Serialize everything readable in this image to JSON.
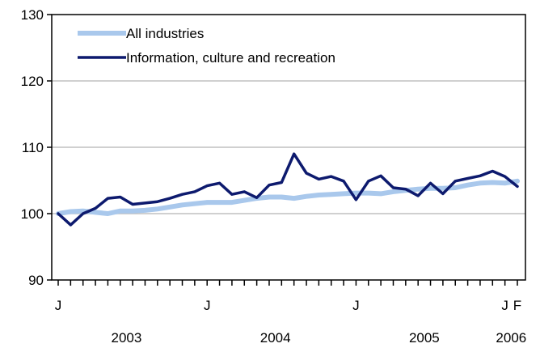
{
  "chart_data": {
    "type": "line",
    "x": [
      "2003-01",
      "2003-02",
      "2003-03",
      "2003-04",
      "2003-05",
      "2003-06",
      "2003-07",
      "2003-08",
      "2003-09",
      "2003-10",
      "2003-11",
      "2003-12",
      "2004-01",
      "2004-02",
      "2004-03",
      "2004-04",
      "2004-05",
      "2004-06",
      "2004-07",
      "2004-08",
      "2004-09",
      "2004-10",
      "2004-11",
      "2004-12",
      "2005-01",
      "2005-02",
      "2005-03",
      "2005-04",
      "2005-05",
      "2005-06",
      "2005-07",
      "2005-08",
      "2005-09",
      "2005-10",
      "2005-11",
      "2005-12",
      "2006-01",
      "2006-02"
    ],
    "series": [
      {
        "name": "All industries",
        "color": "#a9c8ec",
        "values": [
          100.0,
          100.3,
          100.4,
          100.2,
          100.0,
          100.4,
          100.4,
          100.5,
          100.7,
          101.0,
          101.3,
          101.5,
          101.7,
          101.7,
          101.7,
          102.0,
          102.3,
          102.5,
          102.5,
          102.3,
          102.6,
          102.8,
          102.9,
          103.0,
          103.1,
          103.1,
          103.0,
          103.3,
          103.5,
          103.7,
          103.8,
          103.8,
          103.9,
          104.3,
          104.6,
          104.7,
          104.6,
          104.9
        ]
      },
      {
        "name": "Information, culture and recreation",
        "color": "#0d1a6e",
        "values": [
          100.0,
          98.3,
          100.0,
          100.8,
          102.3,
          102.5,
          101.4,
          101.6,
          101.8,
          102.3,
          102.9,
          103.3,
          104.2,
          104.6,
          102.9,
          103.3,
          102.4,
          104.3,
          104.7,
          109.0,
          106.1,
          105.2,
          105.6,
          104.9,
          102.1,
          104.9,
          105.7,
          103.9,
          103.7,
          102.7,
          104.6,
          103.0,
          104.9,
          105.3,
          105.7,
          106.4,
          105.6,
          104.1
        ]
      }
    ],
    "ylim": [
      90,
      130
    ],
    "yticks": [
      "90",
      "100",
      "110",
      "120",
      "130"
    ],
    "x_tick_labels": [
      {
        "index": 0,
        "label": "J"
      },
      {
        "index": 12,
        "label": "J"
      },
      {
        "index": 24,
        "label": "J"
      },
      {
        "index": 36,
        "label": "J"
      },
      {
        "index": 37,
        "label": "F"
      }
    ],
    "year_labels": [
      {
        "center_index": 5.5,
        "label": "2003"
      },
      {
        "center_index": 17.5,
        "label": "2004"
      },
      {
        "center_index": 29.5,
        "label": "2005"
      },
      {
        "center_index": 36.5,
        "label": "2006"
      }
    ],
    "grid": true,
    "legend_position": "top-left"
  }
}
